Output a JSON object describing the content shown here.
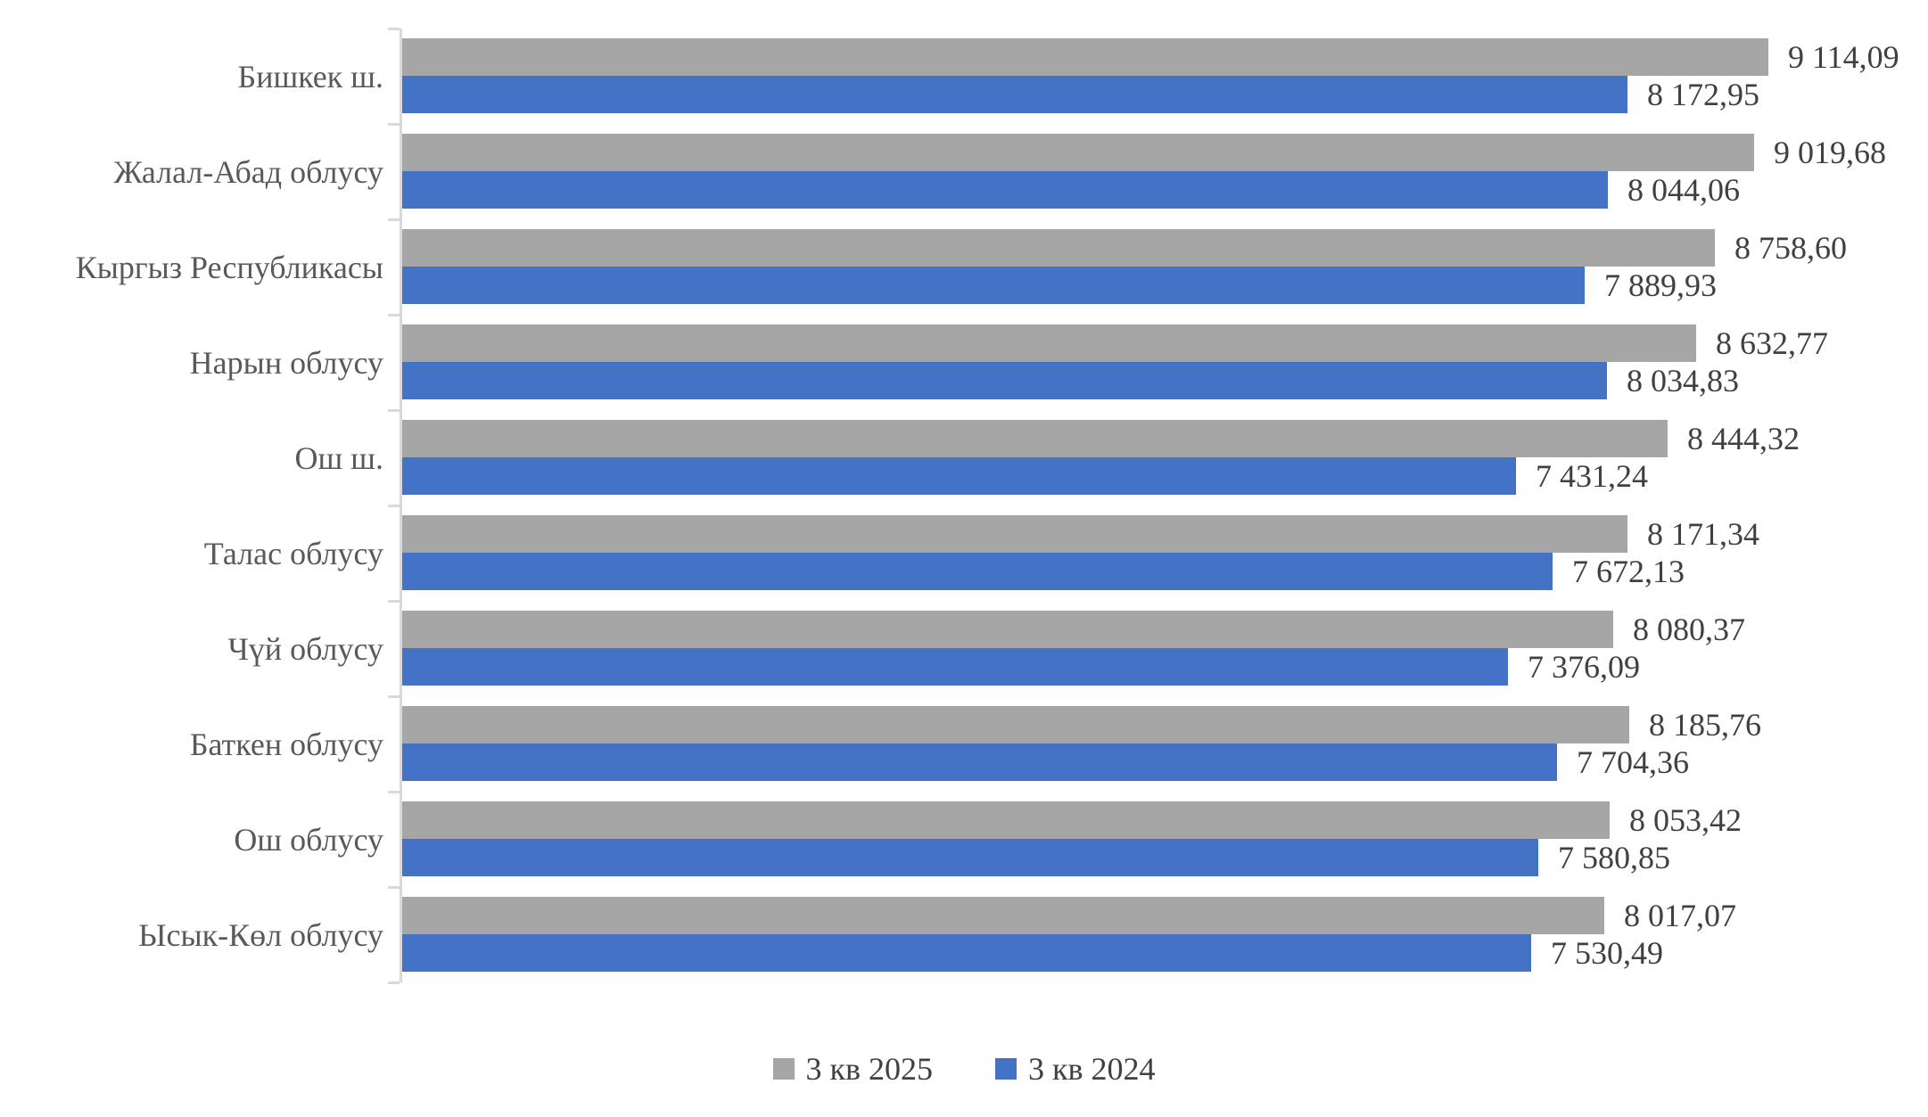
{
  "chart_data": {
    "type": "bar",
    "orientation": "horizontal",
    "title": "",
    "xlabel": "",
    "ylabel": "",
    "grid": false,
    "legend_position": "bottom",
    "axis_max_value": 9114.09,
    "categories": [
      "Бишкек ш.",
      "Жалал-Абад облусу",
      "Кыргыз Республикасы",
      "Нарын облусу",
      "Ош ш.",
      "Талас облусу",
      "Чүй облусу",
      "Баткен облусу",
      "Ош облусу",
      "Ысык-Көл облусу"
    ],
    "series": [
      {
        "name": "3 кв 2025",
        "color": "#A6A6A6",
        "values": [
          9114.09,
          9019.68,
          8758.6,
          8632.77,
          8444.32,
          8171.34,
          8080.37,
          8185.76,
          8053.42,
          8017.07
        ],
        "labels": [
          "9 114,09",
          "9 019,68",
          "8 758,60",
          "8 632,77",
          "8 444,32",
          "8 171,34",
          "8 080,37",
          "8 185,76",
          "8 053,42",
          "8 017,07"
        ]
      },
      {
        "name": "3 кв 2024",
        "color": "#4472C4",
        "values": [
          8172.95,
          8044.06,
          7889.93,
          8034.83,
          7431.24,
          7672.13,
          7376.09,
          7704.36,
          7580.85,
          7530.49
        ],
        "labels": [
          "8 172,95",
          "8 044,06",
          "7 889,93",
          "8 034,83",
          "7 431,24",
          "7 672,13",
          "7 376,09",
          "7 704,36",
          "7 580,85",
          "7 530,49"
        ]
      }
    ]
  },
  "colors": {
    "axis": "#D9D9D9",
    "category_text": "#595959",
    "value_text": "#404040",
    "background": "#FFFFFF"
  }
}
